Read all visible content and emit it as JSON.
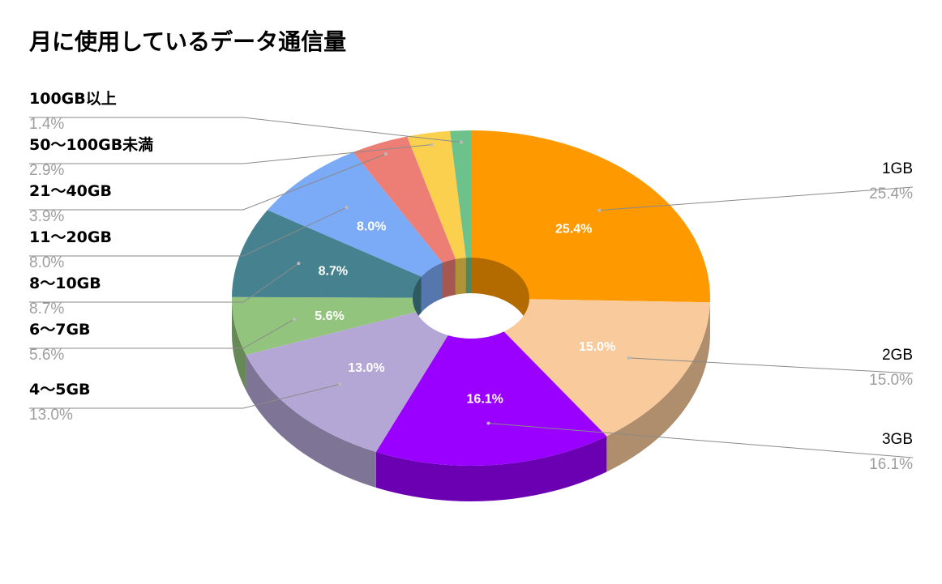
{
  "chart_data": {
    "type": "pie",
    "variant": "3d-donut",
    "title": "月に使用しているデータ通信量",
    "unit": "%",
    "slices": [
      {
        "label": "1GB",
        "value": 25.4,
        "color": "#ff9900",
        "side_color": "#b36b00"
      },
      {
        "label": "2GB",
        "value": 15.0,
        "color": "#f9cb9c",
        "side_color": "#ae8e6d"
      },
      {
        "label": "3GB",
        "value": 16.1,
        "color": "#9900ff",
        "side_color": "#6b00b3"
      },
      {
        "label": "4〜5GB",
        "value": 13.0,
        "color": "#b4a7d6",
        "side_color": "#7e7596"
      },
      {
        "label": "6〜7GB",
        "value": 5.6,
        "color": "#93c47d",
        "side_color": "#678957"
      },
      {
        "label": "8〜10GB",
        "value": 8.7,
        "color": "#45818e",
        "side_color": "#305a63"
      },
      {
        "label": "11〜20GB",
        "value": 8.0,
        "color": "#7baaf7",
        "side_color": "#5677ad"
      },
      {
        "label": "21〜40GB",
        "value": 3.9,
        "color": "#ec7e76",
        "side_color": "#a55852"
      },
      {
        "label": "50〜100GB未満",
        "value": 2.9,
        "color": "#fcd04f",
        "side_color": "#b09237"
      },
      {
        "label": "100GB以上",
        "value": 1.4,
        "color": "#6dc18b",
        "side_color": "#4c8761"
      }
    ],
    "legend": "outside labels with leader lines",
    "inner_labels": [
      "25.4%",
      "15.0%",
      "16.1%",
      "13.0%",
      "5.6%",
      "8.7%",
      "8.0%"
    ]
  }
}
